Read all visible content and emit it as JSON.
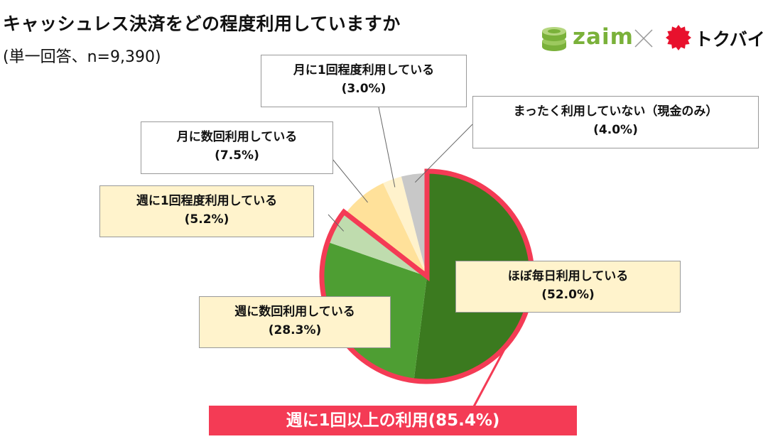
{
  "title": "キャッシュレス決済をどの程度利用していますか",
  "subtitle": "(単一回答、n=9,390)",
  "logos": {
    "zaim": "zaim",
    "tokubai": "トクバイ"
  },
  "colors": {
    "highlight": "#f43b55"
  },
  "chart_data": {
    "type": "pie",
    "title": "キャッシュレス決済をどの程度利用していますか",
    "categories": [
      "ほぼ毎日利用している",
      "週に数回利用している",
      "週に1回程度利用している",
      "月に数回利用している",
      "月に1回程度利用している",
      "まったく利用していない（現金のみ）"
    ],
    "values": [
      52.0,
      28.3,
      5.2,
      7.5,
      3.0,
      4.0
    ],
    "value_labels": [
      "(52.0%)",
      "(28.3%)",
      "(5.2%)",
      "(7.5%)",
      "(3.0%)",
      "(4.0%)"
    ],
    "colors": [
      "#3b7a1f",
      "#4e9e33",
      "#bfdcae",
      "#ffe19a",
      "#fff2cc",
      "#c8c8c8"
    ],
    "start_angle_deg": 0,
    "direction": "clockwise",
    "highlight": {
      "label": "週に1回以上の利用(85.4%)",
      "value": 85.4,
      "color": "#f43b55"
    }
  }
}
